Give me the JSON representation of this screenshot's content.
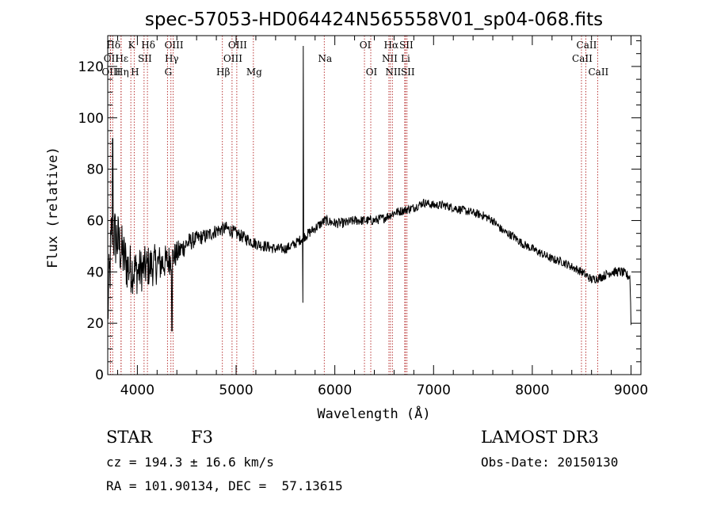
{
  "chart_data": {
    "type": "line",
    "title": "spec-57053-HD064424N565558V01_sp04-068.fits",
    "xlabel": "Wavelength (Å)",
    "ylabel": "Flux (relative)",
    "xlim": [
      3700,
      9100
    ],
    "ylim": [
      0,
      132
    ],
    "xticks": [
      4000,
      5000,
      6000,
      7000,
      8000,
      9000
    ],
    "xtick_labels": [
      "4000",
      "5000",
      "6000",
      "7000",
      "8000",
      "9000"
    ],
    "yticks": [
      0,
      20,
      40,
      60,
      80,
      100,
      120
    ],
    "ytick_labels": [
      "0",
      "20",
      "40",
      "60",
      "80",
      "100",
      "120"
    ],
    "grid": false,
    "legend": "none",
    "series": [
      {
        "name": "flux",
        "continuum": [
          [
            3700,
            24
          ],
          [
            3740,
            55
          ],
          [
            3800,
            52
          ],
          [
            3900,
            42
          ],
          [
            4000,
            40
          ],
          [
            4100,
            42
          ],
          [
            4200,
            43
          ],
          [
            4300,
            44
          ],
          [
            4400,
            47
          ],
          [
            4500,
            51
          ],
          [
            4600,
            53
          ],
          [
            4700,
            54
          ],
          [
            4800,
            56
          ],
          [
            4900,
            57
          ],
          [
            5000,
            55
          ],
          [
            5100,
            53
          ],
          [
            5200,
            51
          ],
          [
            5300,
            50
          ],
          [
            5400,
            49
          ],
          [
            5500,
            49
          ],
          [
            5600,
            51
          ],
          [
            5700,
            54
          ],
          [
            5800,
            57
          ],
          [
            5900,
            60
          ],
          [
            6000,
            59
          ],
          [
            6100,
            59
          ],
          [
            6200,
            60
          ],
          [
            6300,
            60
          ],
          [
            6400,
            60
          ],
          [
            6500,
            61
          ],
          [
            6600,
            63
          ],
          [
            6700,
            64
          ],
          [
            6800,
            65
          ],
          [
            6900,
            67
          ],
          [
            7000,
            66
          ],
          [
            7100,
            66
          ],
          [
            7200,
            65
          ],
          [
            7300,
            64
          ],
          [
            7400,
            63
          ],
          [
            7500,
            62
          ],
          [
            7600,
            60
          ],
          [
            7700,
            56
          ],
          [
            7800,
            54
          ],
          [
            7900,
            51
          ],
          [
            8000,
            49
          ],
          [
            8100,
            47
          ],
          [
            8200,
            45
          ],
          [
            8300,
            44
          ],
          [
            8400,
            42
          ],
          [
            8500,
            40
          ],
          [
            8600,
            37
          ],
          [
            8700,
            38
          ],
          [
            8800,
            40
          ],
          [
            8900,
            40
          ],
          [
            8990,
            38
          ],
          [
            9000,
            20
          ]
        ],
        "features": [
          {
            "name": "spike",
            "wavelength": 5680,
            "flux": 128
          },
          {
            "name": "dip",
            "wavelength": 5675,
            "flux": 28
          },
          {
            "name": "Hdelta_dip",
            "wavelength": 4350,
            "flux": 17
          },
          {
            "name": "early_spike",
            "wavelength": 3750,
            "flux": 92
          }
        ],
        "noise": [
          [
            3700,
            14
          ],
          [
            3850,
            11
          ],
          [
            4000,
            9
          ],
          [
            4200,
            8
          ],
          [
            4400,
            5
          ],
          [
            4600,
            3
          ],
          [
            5500,
            2
          ],
          [
            6000,
            2
          ],
          [
            7000,
            1.7
          ],
          [
            8500,
            1.7
          ],
          [
            9000,
            2
          ]
        ]
      }
    ],
    "line_markers": [
      {
        "label": "Hδ",
        "wavelength": 3750,
        "row": 1
      },
      {
        "label": "OII",
        "wavelength": 3727,
        "row": 2
      },
      {
        "label": "OIII",
        "wavelength": 3727,
        "row": 3
      },
      {
        "label": "Hε",
        "wavelength": 3835,
        "row": 2
      },
      {
        "label": "Hη",
        "wavelength": 3835,
        "row": 3
      },
      {
        "label": "K",
        "wavelength": 3934,
        "row": 1
      },
      {
        "label": "SII",
        "wavelength": 4068,
        "row": 2
      },
      {
        "label": "H",
        "wavelength": 3968,
        "row": 3
      },
      {
        "label": "Hδ",
        "wavelength": 4102,
        "row": 1
      },
      {
        "label": "OIII",
        "wavelength": 4363,
        "row": 1
      },
      {
        "label": "Hγ",
        "wavelength": 4340,
        "row": 2
      },
      {
        "label": "G",
        "wavelength": 4305,
        "row": 3
      },
      {
        "label": "OIII",
        "wavelength": 5007,
        "row": 1
      },
      {
        "label": "OIII",
        "wavelength": 4959,
        "row": 2
      },
      {
        "label": "Hβ",
        "wavelength": 4861,
        "row": 3
      },
      {
        "label": "Mg",
        "wavelength": 5175,
        "row": 3
      },
      {
        "label": "Na",
        "wavelength": 5893,
        "row": 2
      },
      {
        "label": "OI",
        "wavelength": 6300,
        "row": 1
      },
      {
        "label": "OI",
        "wavelength": 6364,
        "row": 3
      },
      {
        "label": "Hα",
        "wavelength": 6563,
        "row": 1
      },
      {
        "label": "SII",
        "wavelength": 6716,
        "row": 1
      },
      {
        "label": "NII",
        "wavelength": 6548,
        "row": 2
      },
      {
        "label": "Li",
        "wavelength": 6708,
        "row": 2
      },
      {
        "label": "NII",
        "wavelength": 6583,
        "row": 3
      },
      {
        "label": "SII",
        "wavelength": 6731,
        "row": 3
      },
      {
        "label": "CaII",
        "wavelength": 8542,
        "row": 1
      },
      {
        "label": "CaII",
        "wavelength": 8498,
        "row": 2
      },
      {
        "label": "CaII",
        "wavelength": 8662,
        "row": 3
      }
    ]
  },
  "info": {
    "object_class": "STAR",
    "subclass": "F3",
    "survey": "LAMOST DR3",
    "redshift": "cz = 194.3 ± 16.6 km/s",
    "obs_date": "Obs-Date: 20150130",
    "coordinates": "RA = 101.90134, DEC =  57.13615"
  }
}
